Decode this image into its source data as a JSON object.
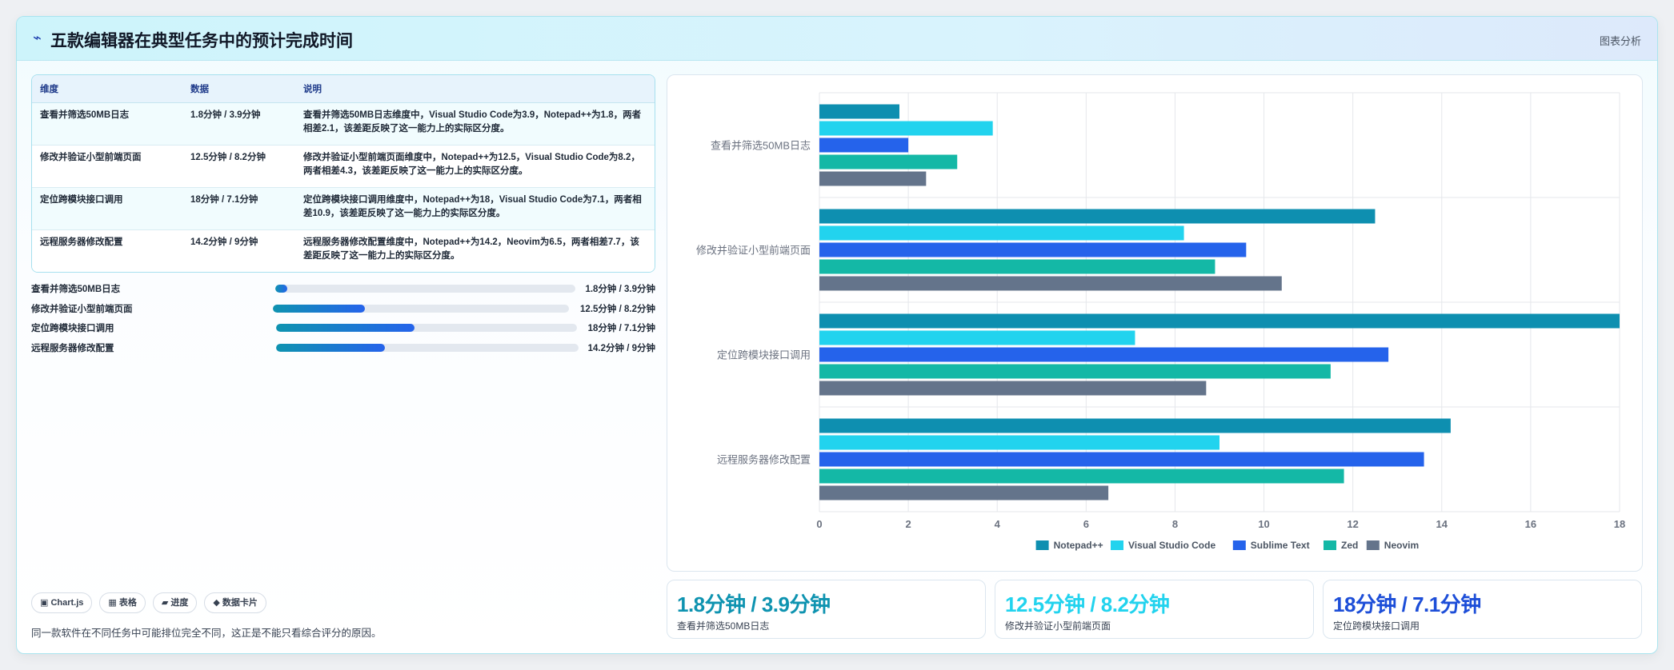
{
  "header": {
    "icon": "wave-icon",
    "title": "五款编辑器在典型任务中的预计完成时间",
    "right_label": "图表分析"
  },
  "table": {
    "headers": [
      "维度",
      "数据",
      "说明"
    ],
    "rows": [
      {
        "dim": "查看并筛选50MB日志",
        "data": "1.8分钟 / 3.9分钟",
        "desc": "查看并筛选50MB日志维度中，Visual Studio Code为3.9，Notepad++为1.8，两者相差2.1，该差距反映了这一能力上的实际区分度。"
      },
      {
        "dim": "修改并验证小型前端页面",
        "data": "12.5分钟 / 8.2分钟",
        "desc": "修改并验证小型前端页面维度中，Notepad++为12.5，Visual Studio Code为8.2，两者相差4.3，该差距反映了这一能力上的实际区分度。"
      },
      {
        "dim": "定位跨模块接口调用",
        "data": "18分钟 / 7.1分钟",
        "desc": "定位跨模块接口调用维度中，Notepad++为18，Visual Studio Code为7.1，两者相差10.9，该差距反映了这一能力上的实际区分度。"
      },
      {
        "dim": "远程服务器修改配置",
        "data": "14.2分钟 / 9分钟",
        "desc": "远程服务器修改配置维度中，Notepad++为14.2，Neovim为6.5，两者相差7.7，该差距反映了这一能力上的实际区分度。"
      }
    ]
  },
  "progress": [
    {
      "label": "查看并筛选50MB日志",
      "value": "1.8分钟 / 3.9分钟",
      "fraction": 0.04
    },
    {
      "label": "修改并验证小型前端页面",
      "value": "12.5分钟 / 8.2分钟",
      "fraction": 0.31
    },
    {
      "label": "定位跨模块接口调用",
      "value": "18分钟 / 7.1分钟",
      "fraction": 0.46
    },
    {
      "label": "远程服务器修改配置",
      "value": "14.2分钟 / 9分钟",
      "fraction": 0.36
    }
  ],
  "tags": [
    "▣ Chart.js",
    "▦ 表格",
    "▰ 进度",
    "◆ 数据卡片"
  ],
  "note": "同一款软件在不同任务中可能排位完全不同，这正是不能只看综合评分的原因。",
  "stats": [
    {
      "value": "1.8分钟 / 3.9分钟",
      "label": "查看并筛选50MB日志",
      "color": "#0e93b0"
    },
    {
      "value": "12.5分钟 / 8.2分钟",
      "label": "修改并验证小型前端页面",
      "color": "#22d3ee"
    },
    {
      "value": "18分钟 / 7.1分钟",
      "label": "定位跨模块接口调用",
      "color": "#1d4ed8"
    }
  ],
  "chart_data": {
    "type": "bar",
    "orientation": "horizontal",
    "categories": [
      "查看并筛选50MB日志",
      "修改并验证小型前端页面",
      "定位跨模块接口调用",
      "远程服务器修改配置"
    ],
    "series": [
      {
        "name": "Notepad++",
        "color": "#0e8fb0",
        "values": [
          1.8,
          12.5,
          18,
          14.2
        ]
      },
      {
        "name": "Visual Studio Code",
        "color": "#22d3ee",
        "values": [
          3.9,
          8.2,
          7.1,
          9
        ]
      },
      {
        "name": "Sublime Text",
        "color": "#2563eb",
        "values": [
          2,
          9.6,
          12.8,
          13.6
        ]
      },
      {
        "name": "Zed",
        "color": "#14b8a6",
        "values": [
          3.1,
          8.9,
          11.5,
          11.8
        ]
      },
      {
        "name": "Neovim",
        "color": "#64748b",
        "values": [
          2.4,
          10.4,
          8.7,
          6.5
        ]
      }
    ],
    "xlim": [
      0,
      18
    ],
    "xticks": [
      0,
      2,
      4,
      6,
      8,
      10,
      12,
      14,
      16,
      18
    ],
    "grid": true,
    "legend": "bottom"
  }
}
